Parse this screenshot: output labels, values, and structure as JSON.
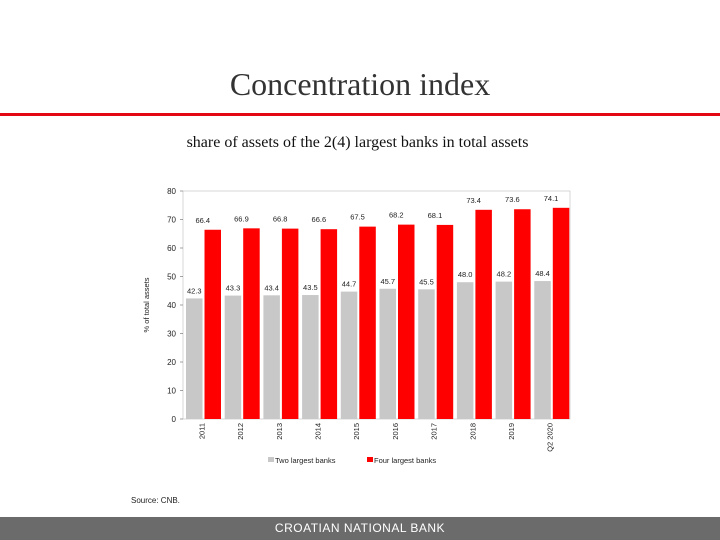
{
  "slide": {
    "title": "Concentration index",
    "subtitle": "share of assets of the 2(4) largest banks in total assets",
    "source": "Source: CNB.",
    "footer": "CROATIAN NATIONAL BANK"
  },
  "colors": {
    "accent": "#e30613",
    "series_gray": "#c8c8c8",
    "series_red": "#ff0000",
    "footer": "#6b6b6b"
  },
  "chart_data": {
    "type": "bar",
    "title": "",
    "xlabel": "",
    "ylabel": "% of total assets",
    "ylim": [
      0,
      80
    ],
    "yticks": [
      0,
      10,
      20,
      30,
      40,
      50,
      60,
      70,
      80
    ],
    "categories": [
      "2011",
      "2012",
      "2013",
      "2014",
      "2015",
      "2016",
      "2017",
      "2018",
      "2019",
      "Q2 2020"
    ],
    "series": [
      {
        "name": "Two largest banks",
        "color": "#c8c8c8",
        "values": [
          42.3,
          43.3,
          43.4,
          43.5,
          44.7,
          45.7,
          45.5,
          48.0,
          48.2,
          48.4
        ],
        "labels": [
          "42.3",
          "43.3",
          "43.4",
          "43.5",
          "44.7",
          "45.7",
          "45.5",
          "48.0",
          "48.2",
          "48.4"
        ]
      },
      {
        "name": "Four largest banks",
        "color": "#ff0000",
        "values": [
          66.4,
          66.9,
          66.8,
          66.6,
          67.5,
          68.2,
          68.1,
          73.4,
          73.6,
          74.1
        ],
        "labels": [
          "66.4",
          "66.9",
          "66.8",
          "66.6",
          "67.5",
          "68.2",
          "68.1",
          "73.4",
          "73.6",
          "74.1"
        ]
      }
    ],
    "legend_position": "bottom"
  }
}
